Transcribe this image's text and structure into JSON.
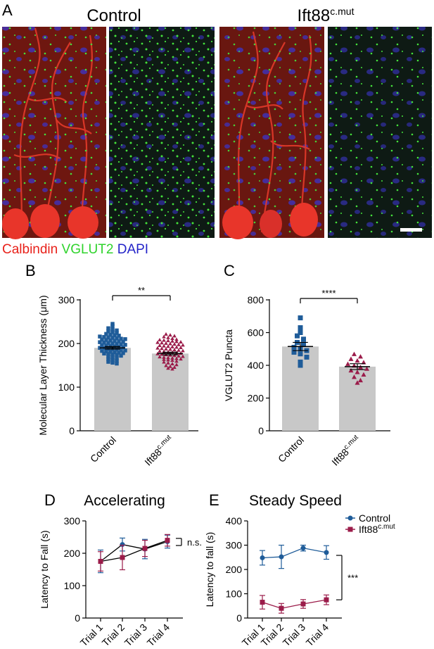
{
  "panels": {
    "A": {
      "letter": "A"
    },
    "B": {
      "letter": "B"
    },
    "C": {
      "letter": "C"
    },
    "D": {
      "letter": "D"
    },
    "E": {
      "letter": "E"
    }
  },
  "micrograph": {
    "control_title": "Control",
    "mutant_title_base": "Ift88",
    "mutant_title_sup": "c.mut",
    "stain_labels": [
      {
        "text": "Calbindin",
        "color": "#e8211a"
      },
      {
        "text": "VGLUT2",
        "color": "#2fd32c"
      },
      {
        "text": "DAPI",
        "color": "#2323c8"
      }
    ],
    "colors": {
      "calbindin": "#e33a2a",
      "vglut2": "#44e23b",
      "dapi": "#3a34c9",
      "background_dark": "#0e1a14",
      "scale_bar": "#ffffff"
    }
  },
  "colors": {
    "control": "#1f5c99",
    "mutant": "#9b1c4a",
    "bar_fill": "#c8c8c8",
    "axis": "#000000"
  },
  "chart_data": [
    {
      "panel": "B",
      "type": "bar",
      "categories": [
        "Control",
        "Ift88"
      ],
      "category_sup": [
        "",
        "c.mut"
      ],
      "values": [
        190,
        177
      ],
      "sem": [
        3,
        3
      ],
      "ylabel": "Molecular Layer Thickness (μm)",
      "ylim": [
        0,
        300
      ],
      "yticks": [
        0,
        100,
        200,
        300
      ],
      "significance": "**",
      "markers": [
        "square",
        "triangle"
      ],
      "points": [
        [
          245,
          240,
          235,
          232,
          230,
          228,
          226,
          224,
          222,
          220,
          219,
          218,
          216,
          215,
          214,
          213,
          212,
          211,
          210,
          209,
          208,
          207,
          206,
          205,
          204,
          203,
          202,
          201,
          200,
          199,
          198,
          197,
          196,
          195,
          194,
          193,
          192,
          191,
          190,
          189,
          188,
          187,
          186,
          185,
          184,
          183,
          182,
          181,
          180,
          179,
          178,
          177,
          176,
          175,
          174,
          172,
          170,
          168,
          166,
          164,
          162,
          160,
          158,
          156,
          154
        ],
        [
          222,
          220,
          218,
          216,
          214,
          212,
          210,
          209,
          208,
          207,
          206,
          205,
          204,
          203,
          202,
          201,
          200,
          199,
          198,
          197,
          196,
          195,
          194,
          193,
          192,
          191,
          190,
          189,
          188,
          187,
          186,
          185,
          184,
          183,
          182,
          181,
          180,
          179,
          178,
          177,
          176,
          175,
          174,
          173,
          172,
          171,
          170,
          169,
          168,
          167,
          166,
          165,
          164,
          163,
          162,
          160,
          158,
          156,
          154,
          152,
          150,
          148,
          146,
          144,
          142
        ]
      ]
    },
    {
      "panel": "C",
      "type": "bar",
      "categories": [
        "Control",
        "Ift88"
      ],
      "category_sup": [
        "",
        "c.mut"
      ],
      "values": [
        515,
        392
      ],
      "sem": [
        25,
        18
      ],
      "ylabel": "VGLUT2 Puncta",
      "ylim": [
        0,
        800
      ],
      "yticks": [
        0,
        200,
        400,
        600,
        800
      ],
      "significance": "****",
      "markers": [
        "square",
        "triangle"
      ],
      "points": [
        [
          690,
          630,
          600,
          580,
          560,
          540,
          530,
          510,
          500,
          490,
          480,
          470,
          450,
          420,
          400
        ],
        [
          470,
          455,
          440,
          430,
          420,
          410,
          400,
          390,
          380,
          370,
          360,
          345,
          330,
          310,
          295
        ]
      ]
    },
    {
      "panel": "D",
      "type": "line",
      "title": "Accelerating",
      "categories": [
        "Trial 1",
        "Trial 2",
        "Trial 3",
        "Trial 4"
      ],
      "ylabel": "Latency to Fall (s)",
      "ylim": [
        0,
        300
      ],
      "yticks": [
        0,
        100,
        200,
        300
      ],
      "significance": "n.s.",
      "series": [
        {
          "key": "control",
          "values": [
            175,
            227,
            213,
            236
          ],
          "errors": [
            35,
            20,
            30,
            20
          ]
        },
        {
          "key": "mutant",
          "values": [
            175,
            187,
            215,
            240
          ],
          "errors": [
            30,
            38,
            25,
            18
          ]
        }
      ]
    },
    {
      "panel": "E",
      "type": "line",
      "title": "Steady Speed",
      "categories": [
        "Trial 1",
        "Trial 2",
        "Trial 3",
        "Trial 4"
      ],
      "ylabel": "Latency to fall (s)",
      "ylim": [
        0,
        400
      ],
      "yticks": [
        0,
        100,
        200,
        300,
        400
      ],
      "significance": "***",
      "legend_position": "top-right",
      "series": [
        {
          "key": "control",
          "name": "Control",
          "name_sup": "",
          "values": [
            248,
            252,
            288,
            270
          ],
          "errors": [
            30,
            48,
            12,
            28
          ]
        },
        {
          "key": "mutant",
          "name": "Ift88",
          "name_sup": "c.mut",
          "values": [
            65,
            40,
            58,
            75
          ],
          "errors": [
            28,
            20,
            18,
            20
          ]
        }
      ]
    }
  ]
}
